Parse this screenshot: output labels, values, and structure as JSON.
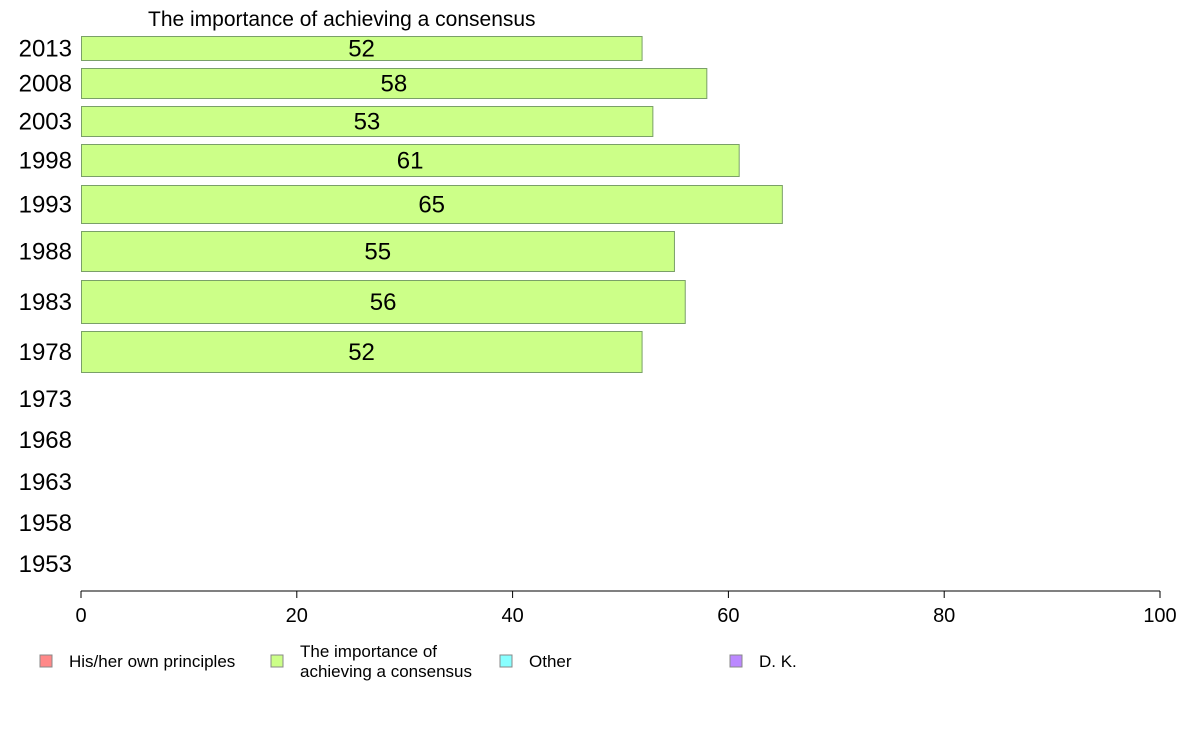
{
  "chart_data": {
    "type": "bar",
    "orientation": "horizontal",
    "title": "The importance of achieving a consensus",
    "categories": [
      "2013",
      "2008",
      "2003",
      "1998",
      "1993",
      "1988",
      "1983",
      "1978",
      "1973",
      "1968",
      "1963",
      "1958",
      "1953"
    ],
    "series": [
      {
        "name": "The importance of achieving a consensus",
        "color": "#ccff88",
        "values": [
          52,
          58,
          53,
          61,
          65,
          55,
          56,
          52,
          null,
          null,
          null,
          null,
          null
        ]
      }
    ],
    "xlim": [
      0,
      100
    ],
    "xticks": [
      "0",
      "20",
      "40",
      "60",
      "80",
      "100"
    ],
    "grid": false,
    "legend": {
      "placement": "bottom",
      "items": [
        {
          "lines": [
            "His/her own principles"
          ],
          "color": "#ff8888"
        },
        {
          "lines": [
            "The importance of",
            "achieving a consensus"
          ],
          "color": "#ccff88"
        },
        {
          "lines": [
            "Other"
          ],
          "color": "#88ffff"
        },
        {
          "lines": [
            "D. K."
          ],
          "color": "#bb88ff"
        }
      ]
    }
  }
}
